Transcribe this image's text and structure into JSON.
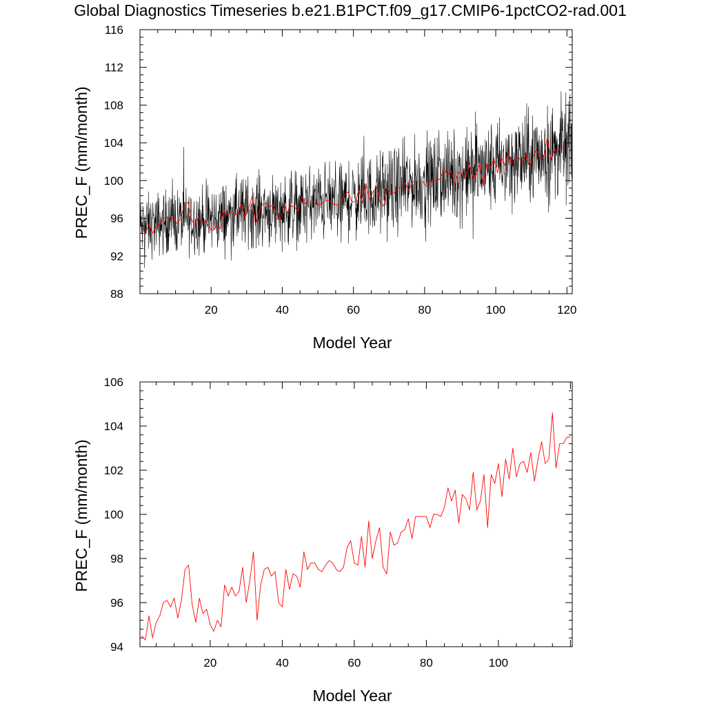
{
  "figure": {
    "title": "Global Diagnostics Timeseries b.e21.B1PCT.f09_g17.CMIP6-1pctCO2-rad.001"
  },
  "chart_data": [
    {
      "type": "line",
      "title": "Global Diagnostics Timeseries b.e21.B1PCT.f09_g17.CMIP6-1pctCO2-rad.001",
      "xlabel": "Model Year",
      "ylabel": "PREC_F (mm/month)",
      "xlim": [
        0.0,
        121.5
      ],
      "ylim": [
        88,
        116
      ],
      "xticks": [
        20,
        40,
        60,
        80,
        100,
        120
      ],
      "yticks": [
        88,
        92,
        96,
        100,
        104,
        108,
        112,
        116
      ],
      "grid": false,
      "legend": "none",
      "series": [
        {
          "color": "#000000",
          "resolution": "monthly",
          "x_start": 0.04,
          "x_step": 0.0833333,
          "trend": [
            [
              0,
              95.0
            ],
            [
              10,
              95.8
            ],
            [
              20,
              95.9
            ],
            [
              30,
              96.8
            ],
            [
              40,
              97.0
            ],
            [
              50,
              97.6
            ],
            [
              60,
              98.0
            ],
            [
              70,
              98.9
            ],
            [
              80,
              99.9
            ],
            [
              90,
              100.6
            ],
            [
              100,
              101.6
            ],
            [
              110,
              102.5
            ],
            [
              120,
              103.6
            ]
          ],
          "approx_range": [
            89.5,
            112.4
          ]
        },
        {
          "color": "#ff0000",
          "resolution": "annual",
          "x_start": 0.5,
          "x_step": 1,
          "values_ref": "chart_data.1.series.0.values"
        }
      ]
    },
    {
      "type": "line",
      "xlabel": "Model Year",
      "ylabel": "PREC_F (mm/month)",
      "xlim": [
        0.5,
        120.5
      ],
      "ylim": [
        94,
        106
      ],
      "xticks": [
        20,
        40,
        60,
        80,
        100
      ],
      "yticks": [
        94,
        96,
        98,
        100,
        102,
        104,
        106
      ],
      "grid": false,
      "legend": "none",
      "series": [
        {
          "color": "#ff0000",
          "x_start": 1,
          "x_step": 1,
          "values": [
            94.5,
            94.3,
            95.4,
            94.4,
            95.1,
            95.4,
            96.0,
            96.1,
            95.8,
            96.2,
            95.3,
            96.1,
            97.5,
            97.7,
            95.9,
            95.1,
            96.2,
            95.5,
            95.7,
            95.0,
            94.7,
            95.2,
            94.9,
            96.8,
            96.3,
            96.7,
            96.3,
            96.5,
            97.6,
            96.0,
            97.0,
            98.3,
            95.2,
            96.8,
            97.5,
            97.6,
            97.2,
            97.4,
            96.0,
            95.8,
            97.5,
            96.6,
            97.3,
            97.2,
            96.7,
            98.3,
            97.5,
            97.8,
            97.8,
            97.5,
            97.4,
            97.7,
            97.9,
            97.8,
            97.5,
            97.4,
            97.6,
            98.5,
            98.8,
            97.8,
            97.7,
            99.0,
            97.6,
            99.7,
            98.0,
            98.8,
            99.4,
            97.6,
            97.3,
            99.2,
            98.6,
            98.7,
            99.2,
            99.3,
            99.8,
            98.9,
            99.9,
            99.9,
            99.9,
            99.9,
            99.4,
            100.0,
            100.0,
            99.9,
            100.3,
            101.2,
            100.6,
            101.1,
            99.6,
            100.9,
            100.7,
            100.2,
            101.9,
            100.2,
            100.6,
            101.8,
            99.4,
            101.8,
            101.4,
            102.3,
            100.8,
            102.5,
            101.6,
            103.0,
            101.7,
            102.3,
            102.4,
            101.9,
            102.8,
            101.5,
            102.5,
            103.3,
            102.3,
            102.5,
            104.6,
            102.1,
            103.2,
            103.2,
            103.5,
            103.5
          ]
        }
      ]
    }
  ]
}
